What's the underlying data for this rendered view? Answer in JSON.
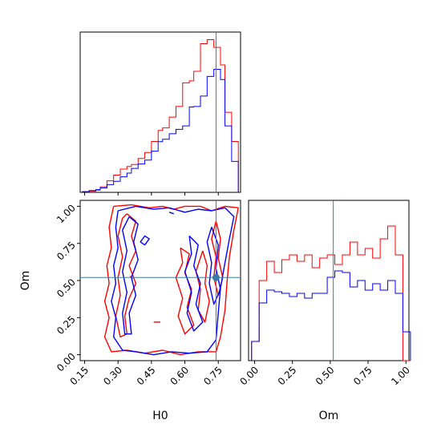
{
  "chart_data": {
    "type": "corner",
    "parameters": [
      "H0",
      "Om"
    ],
    "truth": {
      "H0": 0.74,
      "Om": 0.52,
      "color": "#3a7ca5"
    },
    "series": [],
    "colors": {
      "red": "#ff0000",
      "blue": "#0000ff"
    },
    "histograms": {
      "H0": {
        "xlim": [
          0.13,
          0.85
        ],
        "edges": [
          0.14,
          0.17,
          0.2,
          0.22,
          0.25,
          0.28,
          0.31,
          0.34,
          0.36,
          0.39,
          0.42,
          0.45,
          0.48,
          0.5,
          0.53,
          0.56,
          0.59,
          0.62,
          0.64,
          0.67,
          0.7,
          0.73,
          0.76,
          0.78,
          0.81,
          0.84
        ],
        "red": [
          0.3,
          0.5,
          1.0,
          2.5,
          5.2,
          7.8,
          10.5,
          11.7,
          12.6,
          15.3,
          18.0,
          23.0,
          28.0,
          29.1,
          34.0,
          38.8,
          49.5,
          50.4,
          54.7,
          67.2,
          69.0,
          65.5,
          57.6,
          36.2,
          23.0
        ],
        "blue": [
          0.3,
          0.8,
          1.2,
          2.0,
          3.5,
          5.0,
          7.0,
          8.7,
          10.8,
          12.8,
          14.6,
          18.6,
          22.9,
          24.0,
          26.5,
          28.5,
          30.0,
          38.6,
          38.8,
          43.5,
          52.4,
          55.6,
          51.0,
          30.0,
          14.0
        ],
        "ticks": [
          "0.15",
          "0.30",
          "0.45",
          "0.60",
          "0.75"
        ],
        "tick_values": [
          0.15,
          0.3,
          0.45,
          0.6,
          0.75
        ],
        "label": "H0"
      },
      "Om": {
        "xlim": [
          -0.04,
          1.02
        ],
        "edges": [
          -0.02,
          0.03,
          0.08,
          0.13,
          0.18,
          0.23,
          0.28,
          0.33,
          0.38,
          0.43,
          0.48,
          0.53,
          0.58,
          0.63,
          0.68,
          0.73,
          0.78,
          0.83,
          0.88,
          0.93,
          0.98,
          1.03
        ],
        "red": [
          0.12,
          0.5,
          0.62,
          0.55,
          0.63,
          0.66,
          0.62,
          0.66,
          0.58,
          0.64,
          0.66,
          0.6,
          0.66,
          0.74,
          0.66,
          0.7,
          0.64,
          0.76,
          0.84,
          0.66,
          0.0
        ],
        "blue": [
          0.12,
          0.36,
          0.44,
          0.43,
          0.42,
          0.4,
          0.42,
          0.39,
          0.42,
          0.42,
          0.52,
          0.56,
          0.55,
          0.46,
          0.5,
          0.44,
          0.48,
          0.44,
          0.5,
          0.42,
          0.18
        ],
        "ticks": [
          "0.00",
          "0.25",
          "0.50",
          "0.75",
          "1.00"
        ],
        "tick_values": [
          0.0,
          0.25,
          0.5,
          0.75,
          1.0
        ],
        "label": "Om"
      }
    },
    "scatter_panel": {
      "xlim": [
        0.13,
        0.85
      ],
      "ylim": [
        -0.04,
        1.04
      ],
      "xlabel": "H0",
      "ylabel": "Om",
      "xticks": [
        "0.15",
        "0.30",
        "0.45",
        "0.60",
        "0.75"
      ],
      "xtick_values": [
        0.15,
        0.3,
        0.45,
        0.6,
        0.75
      ],
      "yticks": [
        "0.00",
        "0.25",
        "0.50",
        "0.75",
        "1.00"
      ],
      "ytick_values": [
        0.0,
        0.25,
        0.5,
        0.75,
        1.0
      ],
      "contours": {
        "red": [
          [
            [
              0.28,
              1.0
            ],
            [
              0.36,
              1.01
            ],
            [
              0.44,
              0.99
            ],
            [
              0.5,
              1.0
            ],
            [
              0.55,
              0.98
            ],
            [
              0.6,
              1.0
            ],
            [
              0.67,
              1.0
            ],
            [
              0.72,
              0.97
            ],
            [
              0.78,
              1.0
            ],
            [
              0.84,
              0.99
            ],
            [
              0.82,
              0.84
            ],
            [
              0.8,
              0.66
            ],
            [
              0.79,
              0.5
            ],
            [
              0.78,
              0.3
            ],
            [
              0.76,
              0.12
            ],
            [
              0.74,
              0.02
            ],
            [
              0.66,
              0.02
            ],
            [
              0.58,
              0.0
            ],
            [
              0.5,
              0.03
            ],
            [
              0.42,
              0.01
            ],
            [
              0.34,
              0.03
            ],
            [
              0.27,
              0.02
            ],
            [
              0.24,
              0.12
            ],
            [
              0.26,
              0.25
            ],
            [
              0.24,
              0.36
            ],
            [
              0.26,
              0.48
            ],
            [
              0.25,
              0.6
            ],
            [
              0.27,
              0.72
            ],
            [
              0.26,
              0.86
            ],
            [
              0.28,
              1.0
            ]
          ],
          [
            [
              0.34,
              0.95
            ],
            [
              0.38,
              0.9
            ],
            [
              0.36,
              0.8
            ],
            [
              0.38,
              0.7
            ],
            [
              0.35,
              0.6
            ],
            [
              0.38,
              0.48
            ],
            [
              0.35,
              0.38
            ],
            [
              0.33,
              0.26
            ],
            [
              0.34,
              0.14
            ],
            [
              0.31,
              0.12
            ],
            [
              0.29,
              0.26
            ],
            [
              0.31,
              0.4
            ],
            [
              0.3,
              0.52
            ],
            [
              0.32,
              0.66
            ],
            [
              0.3,
              0.8
            ],
            [
              0.32,
              0.92
            ],
            [
              0.34,
              0.95
            ]
          ],
          [
            [
              0.58,
              0.72
            ],
            [
              0.62,
              0.68
            ],
            [
              0.6,
              0.55
            ],
            [
              0.63,
              0.44
            ],
            [
              0.61,
              0.32
            ],
            [
              0.64,
              0.2
            ],
            [
              0.6,
              0.14
            ],
            [
              0.57,
              0.26
            ],
            [
              0.59,
              0.38
            ],
            [
              0.56,
              0.52
            ],
            [
              0.59,
              0.62
            ],
            [
              0.58,
              0.72
            ]
          ],
          [
            [
              0.68,
              0.7
            ],
            [
              0.7,
              0.6
            ],
            [
              0.69,
              0.48
            ],
            [
              0.71,
              0.36
            ],
            [
              0.69,
              0.22
            ],
            [
              0.66,
              0.3
            ],
            [
              0.67,
              0.44
            ],
            [
              0.65,
              0.56
            ],
            [
              0.68,
              0.7
            ]
          ],
          [
            [
              0.74,
              0.9
            ],
            [
              0.76,
              0.78
            ],
            [
              0.75,
              0.65
            ],
            [
              0.77,
              0.52
            ],
            [
              0.75,
              0.4
            ],
            [
              0.73,
              0.52
            ],
            [
              0.74,
              0.66
            ],
            [
              0.72,
              0.78
            ],
            [
              0.74,
              0.9
            ]
          ],
          [
            [
              0.46,
              0.22
            ],
            [
              0.49,
              0.22
            ]
          ],
          [
            [
              0.355,
              0.53
            ],
            [
              0.365,
              0.51
            ]
          ]
        ],
        "blue": [
          [
            [
              0.3,
              0.97
            ],
            [
              0.38,
              1.0
            ],
            [
              0.46,
              0.98
            ],
            [
              0.53,
              0.99
            ],
            [
              0.6,
              0.96
            ],
            [
              0.66,
              0.98
            ],
            [
              0.72,
              0.97
            ],
            [
              0.78,
              0.99
            ],
            [
              0.82,
              0.93
            ],
            [
              0.8,
              0.78
            ],
            [
              0.78,
              0.62
            ],
            [
              0.76,
              0.45
            ],
            [
              0.75,
              0.28
            ],
            [
              0.74,
              0.1
            ],
            [
              0.7,
              0.02
            ],
            [
              0.62,
              0.01
            ],
            [
              0.54,
              0.02
            ],
            [
              0.46,
              0.0
            ],
            [
              0.38,
              0.02
            ],
            [
              0.32,
              0.03
            ],
            [
              0.28,
              0.12
            ],
            [
              0.29,
              0.25
            ],
            [
              0.27,
              0.36
            ],
            [
              0.29,
              0.48
            ],
            [
              0.28,
              0.6
            ],
            [
              0.3,
              0.72
            ],
            [
              0.29,
              0.86
            ],
            [
              0.3,
              0.97
            ]
          ],
          [
            [
              0.35,
              0.93
            ],
            [
              0.39,
              0.88
            ],
            [
              0.37,
              0.76
            ],
            [
              0.39,
              0.64
            ],
            [
              0.36,
              0.52
            ],
            [
              0.38,
              0.4
            ],
            [
              0.35,
              0.28
            ],
            [
              0.36,
              0.14
            ],
            [
              0.33,
              0.14
            ],
            [
              0.32,
              0.28
            ],
            [
              0.34,
              0.42
            ],
            [
              0.32,
              0.56
            ],
            [
              0.34,
              0.7
            ],
            [
              0.32,
              0.84
            ],
            [
              0.35,
              0.93
            ]
          ],
          [
            [
              0.62,
              0.8
            ],
            [
              0.66,
              0.74
            ],
            [
              0.64,
              0.6
            ],
            [
              0.67,
              0.48
            ],
            [
              0.65,
              0.34
            ],
            [
              0.68,
              0.22
            ],
            [
              0.64,
              0.16
            ],
            [
              0.61,
              0.28
            ],
            [
              0.63,
              0.42
            ],
            [
              0.6,
              0.56
            ],
            [
              0.63,
              0.68
            ],
            [
              0.62,
              0.8
            ]
          ],
          [
            [
              0.72,
              0.86
            ],
            [
              0.75,
              0.74
            ],
            [
              0.74,
              0.58
            ],
            [
              0.76,
              0.44
            ],
            [
              0.73,
              0.34
            ],
            [
              0.71,
              0.48
            ],
            [
              0.72,
              0.62
            ],
            [
              0.7,
              0.76
            ],
            [
              0.72,
              0.86
            ]
          ],
          [
            [
              0.4,
              0.76
            ],
            [
              0.42,
              0.8
            ],
            [
              0.44,
              0.78
            ],
            [
              0.42,
              0.74
            ],
            [
              0.4,
              0.76
            ]
          ],
          [
            [
              0.53,
              0.96
            ],
            [
              0.55,
              0.95
            ]
          ]
        ]
      }
    }
  }
}
